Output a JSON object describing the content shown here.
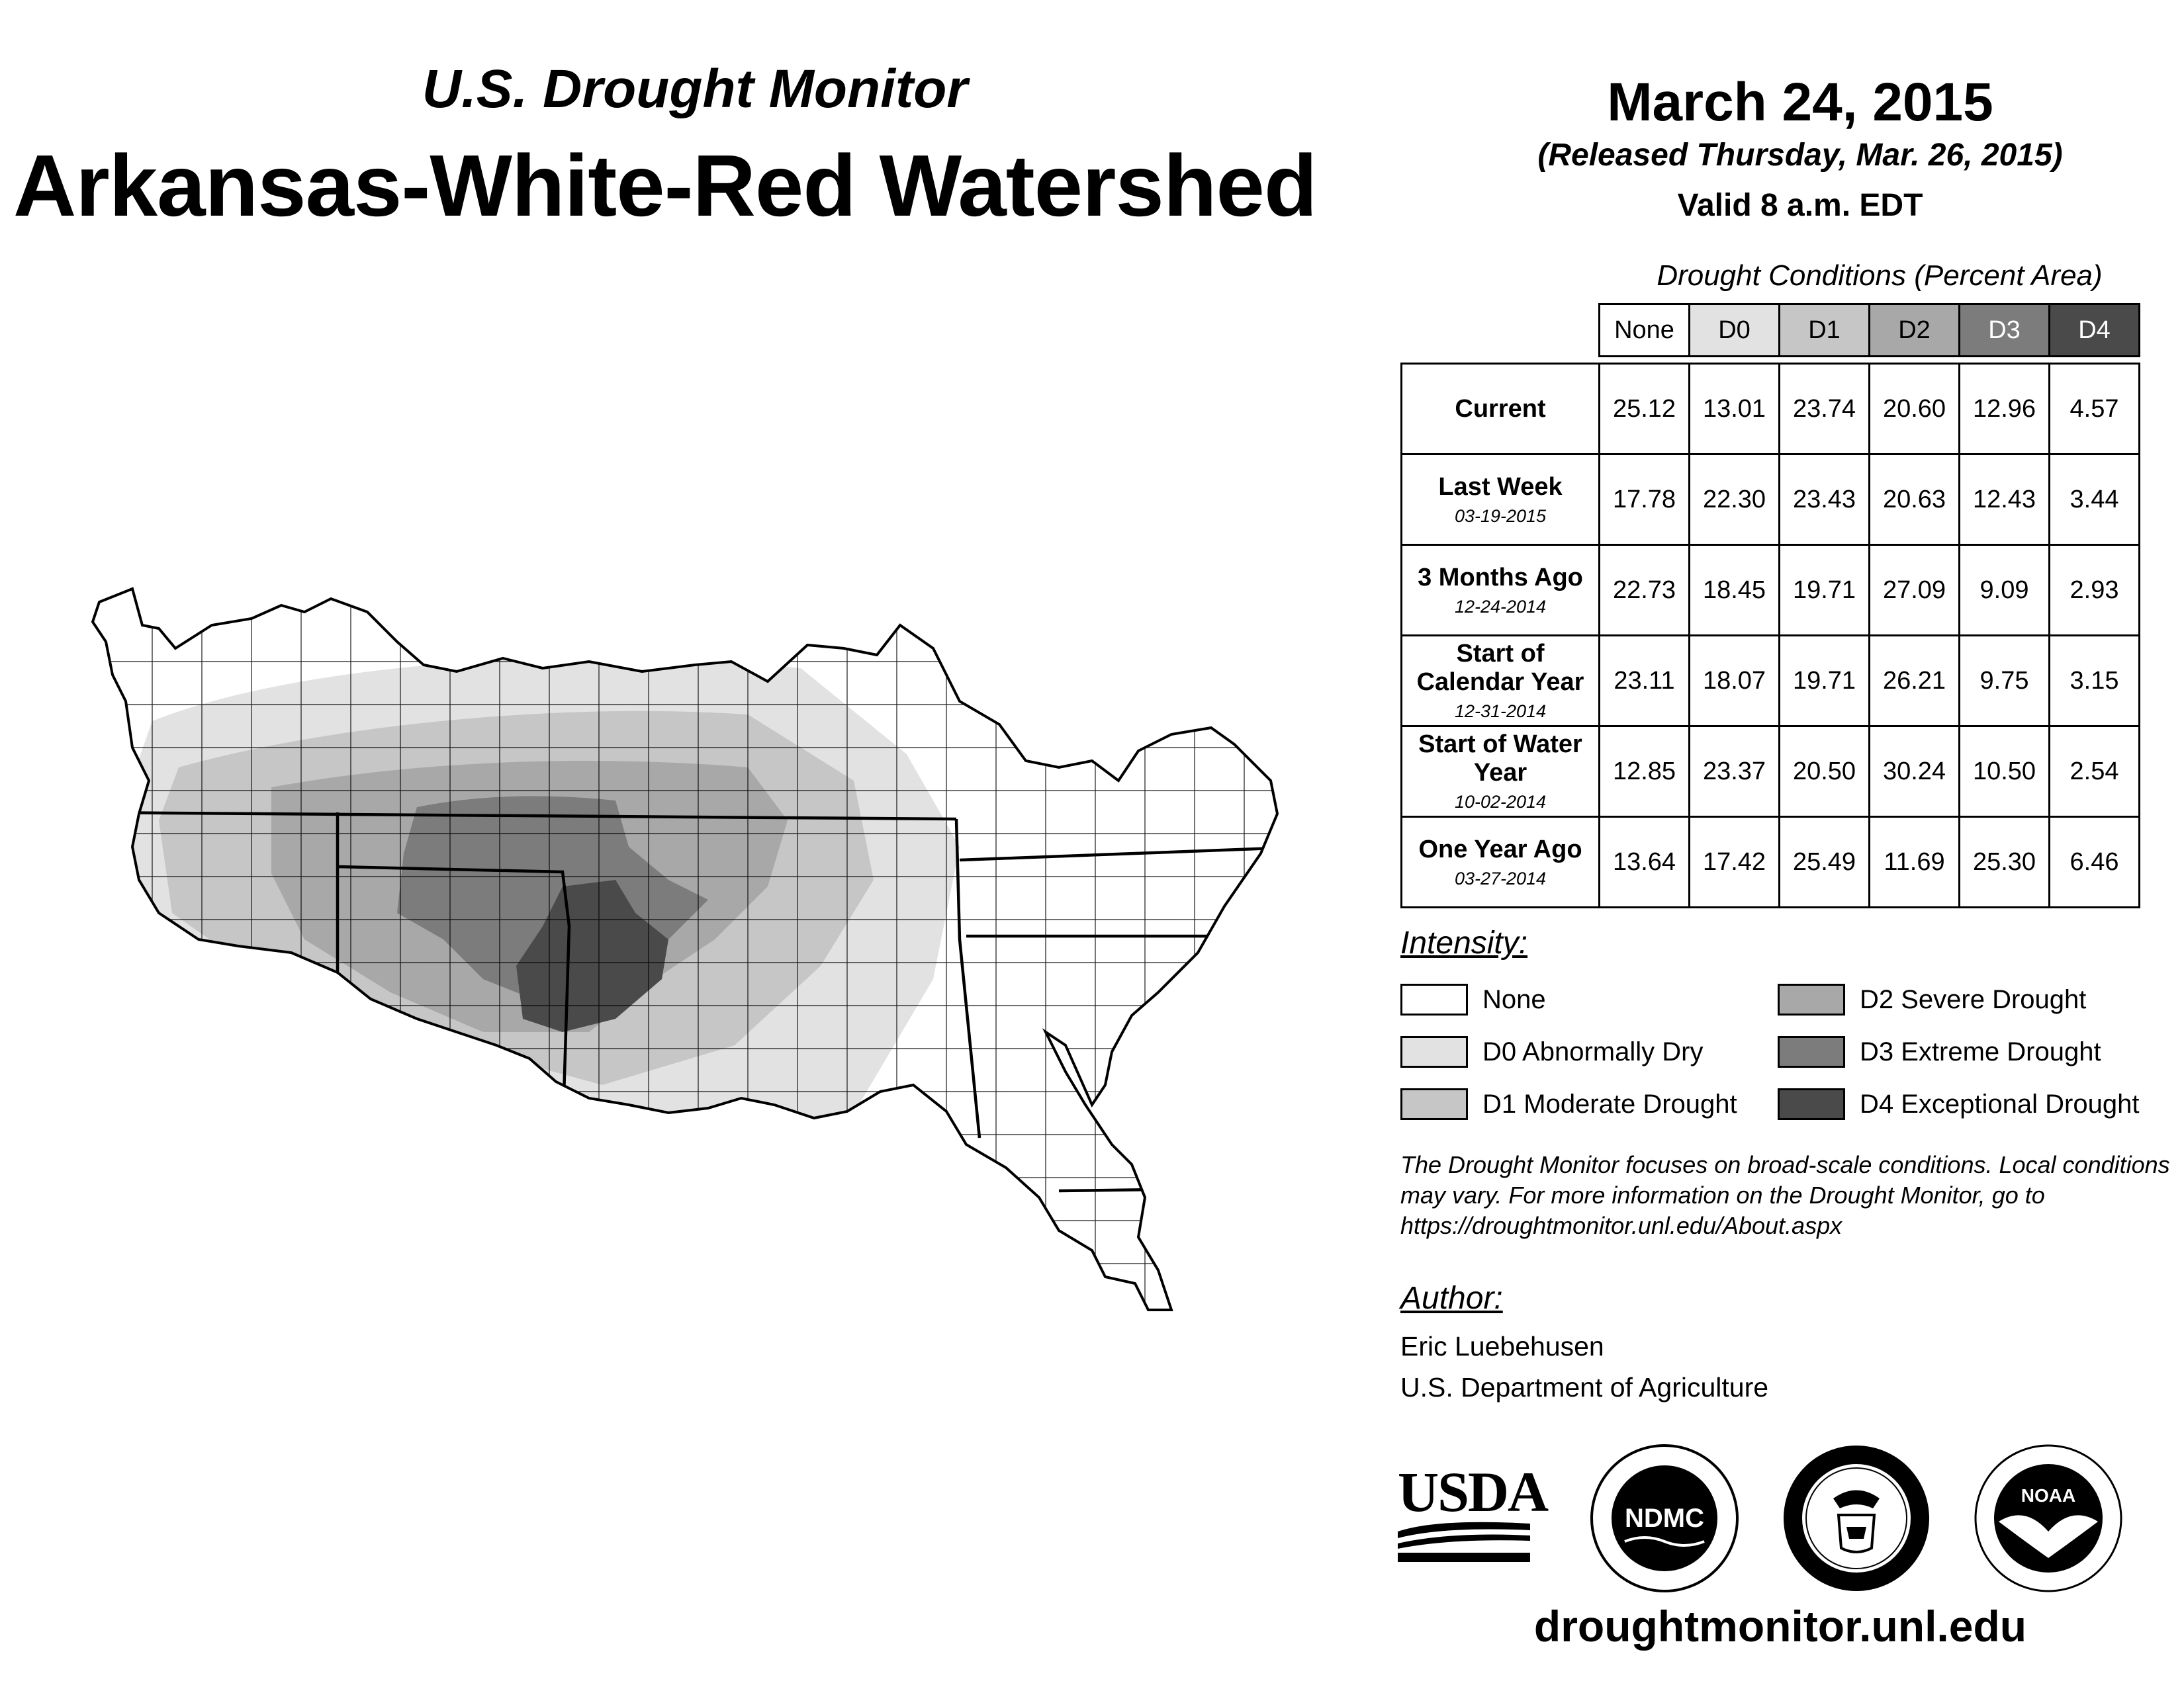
{
  "header": {
    "subtitle": "U.S. Drought Monitor",
    "title": "Arkansas-White-Red Watershed",
    "date": "March 24, 2015",
    "released": "(Released Thursday, Mar. 26, 2015)",
    "valid": "Valid 8 a.m. EDT"
  },
  "conditions": {
    "title": "Drought Conditions (Percent Area)",
    "columns": [
      "None",
      "D0",
      "D1",
      "D2",
      "D3",
      "D4"
    ],
    "rows": [
      {
        "label": "Current",
        "date": "",
        "values": [
          "25.12",
          "13.01",
          "23.74",
          "20.60",
          "12.96",
          "4.57"
        ]
      },
      {
        "label": "Last Week",
        "date": "03-19-2015",
        "values": [
          "17.78",
          "22.30",
          "23.43",
          "20.63",
          "12.43",
          "3.44"
        ]
      },
      {
        "label": "3 Months Ago",
        "date": "12-24-2014",
        "values": [
          "22.73",
          "18.45",
          "19.71",
          "27.09",
          "9.09",
          "2.93"
        ]
      },
      {
        "label": "Start of Calendar Year",
        "date": "12-31-2014",
        "values": [
          "23.11",
          "18.07",
          "19.71",
          "26.21",
          "9.75",
          "3.15"
        ]
      },
      {
        "label": "Start of Water Year",
        "date": "10-02-2014",
        "values": [
          "12.85",
          "23.37",
          "20.50",
          "30.24",
          "10.50",
          "2.54"
        ]
      },
      {
        "label": "One Year Ago",
        "date": "03-27-2014",
        "values": [
          "13.64",
          "17.42",
          "25.49",
          "11.69",
          "25.30",
          "6.46"
        ]
      }
    ]
  },
  "legend": {
    "heading": "Intensity:",
    "items": [
      {
        "label": "None",
        "color": "#ffffff"
      },
      {
        "label": "D0 Abnormally Dry",
        "color": "#e2e2e2"
      },
      {
        "label": "D1 Moderate Drought",
        "color": "#c6c6c6"
      },
      {
        "label": "D2 Severe Drought",
        "color": "#a8a8a8"
      },
      {
        "label": "D3 Extreme Drought",
        "color": "#7c7c7c"
      },
      {
        "label": "D4 Exceptional Drought",
        "color": "#4a4a4a"
      }
    ]
  },
  "note": "The Drought Monitor focuses on broad-scale conditions. Local conditions may vary. For more information on the Drought Monitor, go to https://droughtmonitor.unl.edu/About.aspx",
  "author": {
    "heading": "Author:",
    "name": "Eric Luebehusen",
    "org": "U.S. Department of Agriculture"
  },
  "logos": {
    "usda": "USDA",
    "ndmc": "NDMC",
    "noaa": "NOAA"
  },
  "url": "droughtmonitor.unl.edu"
}
